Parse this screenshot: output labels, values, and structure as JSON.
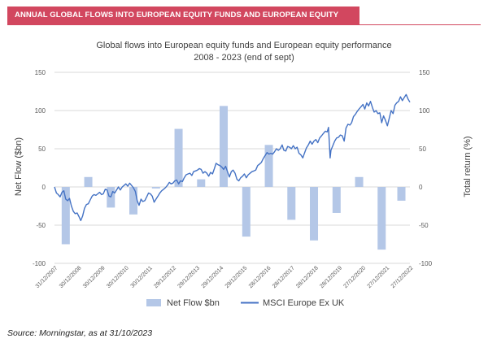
{
  "header": {
    "title": "ANNUAL GLOBAL FLOWS INTO EUROPEAN EQUITY FUNDS AND EUROPEAN EQUITY PERFORMANCE"
  },
  "footer": {
    "source": "Source: Morningstar, as at 31/10/2023"
  },
  "colors": {
    "banner": "#d2475f",
    "bars": "#b4c7e7",
    "line": "#4472c4",
    "grid": "#d9d9d9",
    "text": "#595959"
  },
  "chart_data": {
    "type": "bar",
    "title": "Global flows into European equity funds and European equity performance",
    "subtitle": "2008 - 2023 (end of sept)",
    "ylabel": "Net Flow ($bn)",
    "y2label": "Total return (%)",
    "ylim": [
      -100,
      150
    ],
    "y2lim": [
      -100,
      150
    ],
    "yticks": [
      -100,
      -50,
      0,
      50,
      100,
      150
    ],
    "xlim": [
      "2007-12-31",
      "2023-09-30"
    ],
    "x_tick_labels": [
      "31/12/2007",
      "30/12/2008",
      "30/12/2009",
      "30/12/2010",
      "30/12/2011",
      "29/12/2012",
      "29/12/2013",
      "29/12/2014",
      "29/12/2015",
      "28/12/2016",
      "28/12/2017",
      "28/12/2018",
      "28/12/2019",
      "27/12/2020",
      "27/12/2021",
      "27/12/2022"
    ],
    "legend": [
      "Net Flow $bn",
      "MSCI Europe Ex UK"
    ],
    "legend_position": "bottom",
    "gridlines": true,
    "series": [
      {
        "name": "Net Flow $bn",
        "kind": "bar",
        "x": [
          "2008-06-30",
          "2009-06-30",
          "2010-06-30",
          "2011-06-30",
          "2012-06-30",
          "2013-06-30",
          "2014-06-30",
          "2015-06-30",
          "2016-06-30",
          "2017-06-30",
          "2018-06-30",
          "2019-06-30",
          "2020-06-30",
          "2021-06-30",
          "2022-06-30",
          "2023-05-15"
        ],
        "values": [
          -75,
          13,
          -27,
          -36,
          -2,
          76,
          10,
          106,
          -65,
          55,
          -43,
          -70,
          -34,
          13,
          -82,
          -18
        ]
      },
      {
        "name": "MSCI Europe Ex UK",
        "kind": "line",
        "points": [
          [
            "2007-12-31",
            0
          ],
          [
            "2008-01-31",
            -8
          ],
          [
            "2008-02-29",
            -10
          ],
          [
            "2008-03-31",
            -13
          ],
          [
            "2008-04-30",
            -7
          ],
          [
            "2008-05-31",
            -5
          ],
          [
            "2008-06-30",
            -16
          ],
          [
            "2008-07-31",
            -18
          ],
          [
            "2008-08-31",
            -15
          ],
          [
            "2008-09-30",
            -25
          ],
          [
            "2008-10-31",
            -32
          ],
          [
            "2008-11-30",
            -35
          ],
          [
            "2008-12-31",
            -34
          ],
          [
            "2009-01-31",
            -39
          ],
          [
            "2009-02-28",
            -44
          ],
          [
            "2009-03-31",
            -38
          ],
          [
            "2009-04-30",
            -28
          ],
          [
            "2009-05-31",
            -23
          ],
          [
            "2009-06-30",
            -22
          ],
          [
            "2009-07-31",
            -17
          ],
          [
            "2009-08-31",
            -12
          ],
          [
            "2009-09-30",
            -10
          ],
          [
            "2009-10-31",
            -11
          ],
          [
            "2009-11-30",
            -9
          ],
          [
            "2009-12-31",
            -7
          ],
          [
            "2010-01-31",
            -10
          ],
          [
            "2010-02-28",
            -9
          ],
          [
            "2010-03-31",
            -3
          ],
          [
            "2010-04-30",
            -4
          ],
          [
            "2010-05-31",
            -12
          ],
          [
            "2010-06-30",
            -13
          ],
          [
            "2010-07-31",
            -6
          ],
          [
            "2010-08-31",
            -8
          ],
          [
            "2010-09-30",
            -4
          ],
          [
            "2010-10-31",
            0
          ],
          [
            "2010-11-30",
            -4
          ],
          [
            "2010-12-31",
            0
          ],
          [
            "2011-01-31",
            2
          ],
          [
            "2011-02-28",
            4
          ],
          [
            "2011-03-31",
            1
          ],
          [
            "2011-04-30",
            5
          ],
          [
            "2011-05-31",
            2
          ],
          [
            "2011-06-30",
            -1
          ],
          [
            "2011-07-31",
            -6
          ],
          [
            "2011-08-31",
            -18
          ],
          [
            "2011-09-30",
            -24
          ],
          [
            "2011-10-31",
            -16
          ],
          [
            "2011-11-30",
            -19
          ],
          [
            "2011-12-31",
            -18
          ],
          [
            "2012-01-31",
            -13
          ],
          [
            "2012-02-29",
            -8
          ],
          [
            "2012-03-31",
            -9
          ],
          [
            "2012-04-30",
            -12
          ],
          [
            "2012-05-31",
            -20
          ],
          [
            "2012-06-30",
            -16
          ],
          [
            "2012-07-31",
            -12
          ],
          [
            "2012-08-31",
            -8
          ],
          [
            "2012-09-30",
            -5
          ],
          [
            "2012-10-31",
            -3
          ],
          [
            "2012-11-30",
            -1
          ],
          [
            "2012-12-31",
            2
          ],
          [
            "2013-01-31",
            6
          ],
          [
            "2013-02-28",
            4
          ],
          [
            "2013-03-31",
            5
          ],
          [
            "2013-04-30",
            8
          ],
          [
            "2013-05-31",
            9
          ],
          [
            "2013-06-30",
            4
          ],
          [
            "2013-07-31",
            8
          ],
          [
            "2013-08-31",
            7
          ],
          [
            "2013-09-30",
            12
          ],
          [
            "2013-10-31",
            16
          ],
          [
            "2013-11-30",
            17
          ],
          [
            "2013-12-31",
            18
          ],
          [
            "2014-01-31",
            15
          ],
          [
            "2014-02-28",
            20
          ],
          [
            "2014-03-31",
            21
          ],
          [
            "2014-04-30",
            22
          ],
          [
            "2014-05-31",
            24
          ],
          [
            "2014-06-30",
            23
          ],
          [
            "2014-07-31",
            18
          ],
          [
            "2014-08-31",
            20
          ],
          [
            "2014-09-30",
            18
          ],
          [
            "2014-10-31",
            14
          ],
          [
            "2014-11-30",
            19
          ],
          [
            "2014-12-31",
            17
          ],
          [
            "2015-01-31",
            24
          ],
          [
            "2015-02-28",
            31
          ],
          [
            "2015-03-31",
            29
          ],
          [
            "2015-04-30",
            28
          ],
          [
            "2015-05-31",
            26
          ],
          [
            "2015-06-30",
            23
          ],
          [
            "2015-07-31",
            27
          ],
          [
            "2015-08-31",
            20
          ],
          [
            "2015-09-30",
            13
          ],
          [
            "2015-10-31",
            20
          ],
          [
            "2015-11-30",
            22
          ],
          [
            "2015-12-31",
            18
          ],
          [
            "2016-01-31",
            10
          ],
          [
            "2016-02-29",
            8
          ],
          [
            "2016-03-31",
            12
          ],
          [
            "2016-04-30",
            14
          ],
          [
            "2016-05-31",
            17
          ],
          [
            "2016-06-30",
            12
          ],
          [
            "2016-07-31",
            16
          ],
          [
            "2016-08-31",
            18
          ],
          [
            "2016-09-30",
            20
          ],
          [
            "2016-10-31",
            21
          ],
          [
            "2016-11-30",
            22
          ],
          [
            "2016-12-31",
            28
          ],
          [
            "2017-01-31",
            30
          ],
          [
            "2017-02-28",
            32
          ],
          [
            "2017-03-31",
            37
          ],
          [
            "2017-04-30",
            41
          ],
          [
            "2017-05-31",
            45
          ],
          [
            "2017-06-30",
            43
          ],
          [
            "2017-07-31",
            44
          ],
          [
            "2017-08-31",
            43
          ],
          [
            "2017-09-30",
            46
          ],
          [
            "2017-10-31",
            50
          ],
          [
            "2017-11-30",
            48
          ],
          [
            "2017-12-31",
            50
          ],
          [
            "2018-01-31",
            55
          ],
          [
            "2018-02-28",
            48
          ],
          [
            "2018-03-31",
            47
          ],
          [
            "2018-04-30",
            53
          ],
          [
            "2018-05-31",
            52
          ],
          [
            "2018-06-30",
            50
          ],
          [
            "2018-07-31",
            54
          ],
          [
            "2018-08-31",
            50
          ],
          [
            "2018-09-30",
            52
          ],
          [
            "2018-10-31",
            44
          ],
          [
            "2018-11-30",
            42
          ],
          [
            "2018-12-31",
            38
          ],
          [
            "2019-01-31",
            45
          ],
          [
            "2019-02-28",
            51
          ],
          [
            "2019-03-31",
            55
          ],
          [
            "2019-04-30",
            60
          ],
          [
            "2019-05-31",
            56
          ],
          [
            "2019-06-30",
            60
          ],
          [
            "2019-07-31",
            62
          ],
          [
            "2019-08-31",
            58
          ],
          [
            "2019-09-30",
            64
          ],
          [
            "2019-10-31",
            67
          ],
          [
            "2019-11-30",
            70
          ],
          [
            "2019-12-31",
            73
          ],
          [
            "2020-01-31",
            72
          ],
          [
            "2020-02-20",
            78
          ],
          [
            "2020-03-18",
            38
          ],
          [
            "2020-03-31",
            48
          ],
          [
            "2020-04-30",
            54
          ],
          [
            "2020-05-31",
            60
          ],
          [
            "2020-06-30",
            64
          ],
          [
            "2020-07-31",
            65
          ],
          [
            "2020-08-31",
            68
          ],
          [
            "2020-09-30",
            67
          ],
          [
            "2020-10-31",
            60
          ],
          [
            "2020-11-30",
            77
          ],
          [
            "2020-12-31",
            82
          ],
          [
            "2021-01-31",
            81
          ],
          [
            "2021-02-28",
            84
          ],
          [
            "2021-03-31",
            92
          ],
          [
            "2021-04-30",
            95
          ],
          [
            "2021-05-31",
            99
          ],
          [
            "2021-06-30",
            102
          ],
          [
            "2021-07-31",
            105
          ],
          [
            "2021-08-31",
            108
          ],
          [
            "2021-09-30",
            102
          ],
          [
            "2021-10-31",
            110
          ],
          [
            "2021-11-30",
            106
          ],
          [
            "2021-12-31",
            112
          ],
          [
            "2022-01-31",
            104
          ],
          [
            "2022-02-28",
            98
          ],
          [
            "2022-03-31",
            100
          ],
          [
            "2022-04-30",
            96
          ],
          [
            "2022-05-31",
            97
          ],
          [
            "2022-06-30",
            84
          ],
          [
            "2022-07-31",
            93
          ],
          [
            "2022-08-31",
            87
          ],
          [
            "2022-09-30",
            80
          ],
          [
            "2022-10-31",
            90
          ],
          [
            "2022-11-30",
            100
          ],
          [
            "2022-12-31",
            96
          ],
          [
            "2023-01-31",
            107
          ],
          [
            "2023-02-28",
            110
          ],
          [
            "2023-03-31",
            112
          ],
          [
            "2023-04-30",
            118
          ],
          [
            "2023-05-31",
            113
          ],
          [
            "2023-06-30",
            117
          ],
          [
            "2023-07-31",
            121
          ],
          [
            "2023-08-31",
            115
          ],
          [
            "2023-09-30",
            111
          ]
        ]
      }
    ]
  }
}
